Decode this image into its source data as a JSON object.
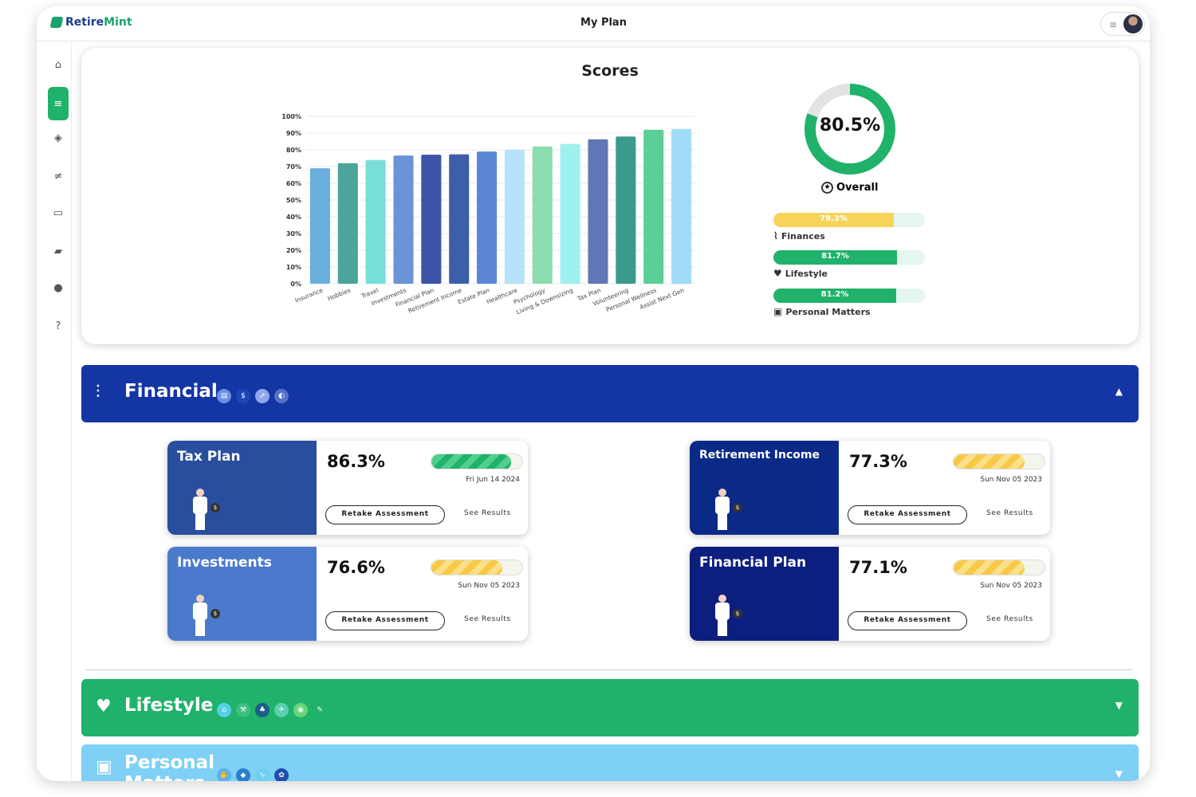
{
  "app": {
    "brand_a": "Retire",
    "brand_b": "Mint",
    "title": "My Plan"
  },
  "topbar": {
    "menu_icon": "hamburger-menu-icon",
    "avatar": "user-avatar"
  },
  "sidebar": {
    "items": [
      {
        "icon": "home-icon",
        "glyph": "⌂",
        "active": false
      },
      {
        "icon": "plan-checklist-icon",
        "glyph": "≡",
        "active": true
      },
      {
        "icon": "graduation-cap-icon",
        "glyph": "◈",
        "active": false
      },
      {
        "icon": "tasks-icon",
        "glyph": "≠",
        "active": false
      },
      {
        "icon": "document-icon",
        "glyph": "▭",
        "active": false
      },
      {
        "icon": "bookmarks-icon",
        "glyph": "▰",
        "active": false
      },
      {
        "icon": "account-icon",
        "glyph": "●",
        "active": false
      },
      {
        "icon": "help-icon",
        "glyph": "?",
        "active": false
      }
    ]
  },
  "scores": {
    "title": "Scores",
    "overall_value": "80.5%",
    "overall_fraction": 0.805,
    "overall_label": "Overall",
    "categories": [
      {
        "label": "Finances",
        "value_text": "79.3%",
        "value": 0.793,
        "color": "#f7d35a",
        "icon": "finances-chart-icon",
        "glyph": "⌇"
      },
      {
        "label": "Lifestyle",
        "value_text": "81.7%",
        "value": 0.817,
        "color": "#20b26b",
        "icon": "lifestyle-hand-icon",
        "glyph": "♥"
      },
      {
        "label": "Personal Matters",
        "value_text": "81.2%",
        "value": 0.812,
        "color": "#20b26b",
        "icon": "personal-matters-icon",
        "glyph": "▣"
      }
    ]
  },
  "chart_data": {
    "type": "bar",
    "categories": [
      "Insurance",
      "Hobbies",
      "Travel",
      "Investments",
      "Financial Plan",
      "Retirement Income",
      "Estate Plan",
      "Healthcare",
      "Psychology",
      "Living & Downsizing",
      "Tax Plan",
      "Volunteering",
      "Personal Wellness",
      "Assist Next Gen"
    ],
    "values": [
      69,
      72,
      74,
      76.6,
      77.1,
      77.3,
      79,
      80,
      82,
      83.5,
      86.3,
      88,
      92,
      92.5
    ],
    "colors": [
      "#6aaedd",
      "#4aa59a",
      "#78dfd8",
      "#6b93d6",
      "#3b54a8",
      "#3d5ea8",
      "#5b86d6",
      "#b6e3fa",
      "#8bdcae",
      "#9ef1ee",
      "#6277b5",
      "#3b9a8e",
      "#5bcf96",
      "#a0dcf7"
    ],
    "yticks": [
      "100%",
      "90%",
      "80%",
      "70%",
      "60%",
      "50%",
      "40%",
      "30%",
      "20%",
      "10%",
      "0%"
    ],
    "ylim": [
      0,
      100
    ],
    "grid": true
  },
  "sections": {
    "financial": {
      "title": "Financial",
      "color": "#1436a4",
      "chips": [
        {
          "icon": "calculator-icon",
          "glyph": "▤",
          "color": "#6b8ee8"
        },
        {
          "icon": "dollar-icon",
          "glyph": "$",
          "color": "#1b47b8"
        },
        {
          "icon": "chart-line-icon",
          "glyph": "⇗",
          "color": "#8ea8f0"
        },
        {
          "icon": "piggy-bank-icon",
          "glyph": "◐",
          "color": "#5570c8"
        }
      ],
      "assessments": [
        {
          "name": "Tax Plan",
          "pct": "86.3%",
          "fill": 0.86,
          "date": "Fri Jun 14 2024",
          "color": "#2a4e9e",
          "bar": "green"
        },
        {
          "name": "Retirement Income",
          "pct": "77.3%",
          "fill": 0.77,
          "date": "Sun Nov 05 2023",
          "color": "#0b2a88",
          "bar": "yellow"
        },
        {
          "name": "Investments",
          "pct": "76.6%",
          "fill": 0.77,
          "date": "Sun Nov 05 2023",
          "color": "#4b7acc",
          "bar": "yellow"
        },
        {
          "name": "Financial Plan",
          "pct": "77.1%",
          "fill": 0.77,
          "date": "Sun Nov 05 2023",
          "color": "#0d1f7e",
          "bar": "yellow"
        }
      ],
      "retake_label": "Retake Assessment",
      "results_label": "See Results"
    },
    "lifestyle": {
      "title": "Lifestyle",
      "color": "#20b26b",
      "chips": [
        {
          "icon": "home-chip-icon",
          "glyph": "⌂",
          "color": "#56cfe6"
        },
        {
          "icon": "tools-chip-icon",
          "glyph": "⚒",
          "color": "#3cbf80"
        },
        {
          "icon": "hands-chip-icon",
          "glyph": "♣",
          "color": "#1c5f8a"
        },
        {
          "icon": "plane-chip-icon",
          "glyph": "✈",
          "color": "#5ad0b0"
        },
        {
          "icon": "location-chip-icon",
          "glyph": "◉",
          "color": "#6ad37c"
        },
        {
          "icon": "brush-chip-icon",
          "glyph": "✎",
          "color": "#20b26b"
        }
      ]
    },
    "personal": {
      "title": "Personal Matters",
      "title_line1": "Personal",
      "title_line2": "Matters",
      "color": "#7ed0f5",
      "chips": [
        {
          "icon": "handshake-chip-icon",
          "glyph": "✋",
          "color": "#5ab0f0"
        },
        {
          "icon": "shield-chip-icon",
          "glyph": "◆",
          "color": "#2b7ed0"
        },
        {
          "icon": "heart-rate-chip-icon",
          "glyph": "∿",
          "color": "#6fd1f0"
        },
        {
          "icon": "family-chip-icon",
          "glyph": "✿",
          "color": "#1e4fb0"
        }
      ]
    }
  }
}
